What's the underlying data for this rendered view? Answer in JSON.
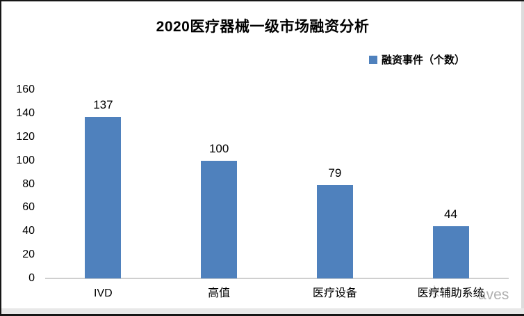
{
  "frame": {
    "border_color": "#161616",
    "edge_strip_color": "#e8e8e8"
  },
  "chart_data": {
    "type": "bar",
    "title": "2020医疗器械一级市场融资分析",
    "legend": [
      "融资事件（个数）"
    ],
    "legend_position": "top-right",
    "categories": [
      "IVD",
      "高值",
      "医疗设备",
      "医疗辅助系统"
    ],
    "values": [
      137,
      100,
      79,
      44
    ],
    "data_labels": true,
    "ylim": [
      0,
      160
    ],
    "yticks": [
      0,
      20,
      40,
      60,
      80,
      100,
      120,
      140,
      160
    ],
    "grid": false,
    "bar_color": "#4F81BD",
    "axis_line_color": "#cfcfcf",
    "xlabel": "",
    "ylabel": ""
  },
  "watermark": {
    "icon": "starburst",
    "text": "aves"
  }
}
